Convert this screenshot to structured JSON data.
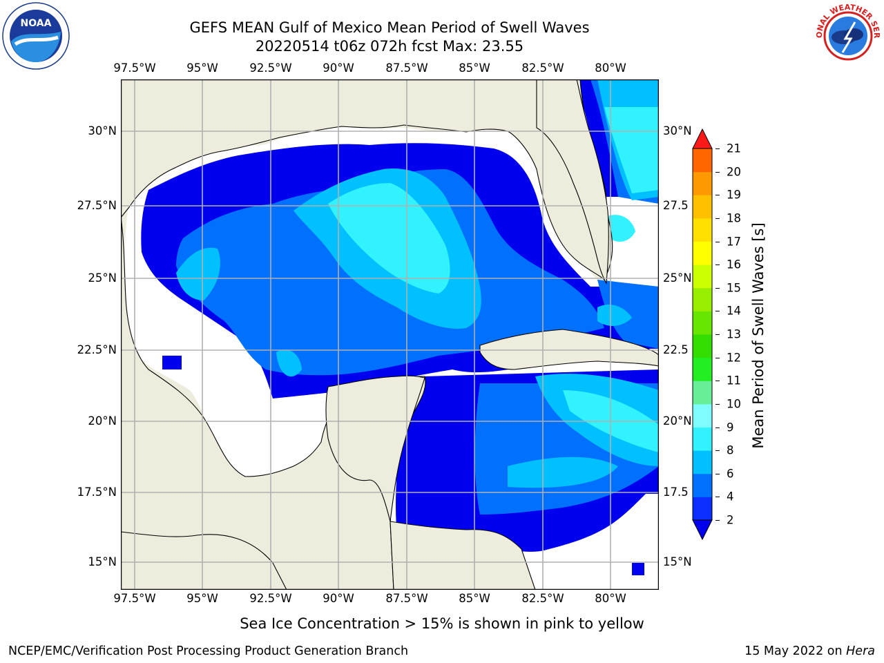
{
  "title": {
    "line1": "GEFS MEAN Gulf of Mexico Mean Period of Swell Waves",
    "line2": "20220514 t06z 072h fcst   Max: 23.55"
  },
  "logos": {
    "left": "noara-logo",
    "right": "nws-logo",
    "noaa_text": "NOAA",
    "nws_text": "NATIONAL WEATHER SERVICE"
  },
  "axes": {
    "lon_ticks": [
      "97.5°W",
      "95°W",
      "92.5°W",
      "90°W",
      "87.5°W",
      "85°W",
      "82.5°W",
      "80°W"
    ],
    "lat_ticks_left": [
      "30°N",
      "27.5°N",
      "25°N",
      "22.5°N",
      "20°N",
      "17.5°N",
      "15°N"
    ],
    "lat_ticks_right": [
      "30°N",
      "27.5",
      "25°N",
      "22.5",
      "20°N",
      "17.5",
      "15°N"
    ],
    "lon_range": [
      -98,
      -78.2
    ],
    "lat_range": [
      14,
      31.8
    ]
  },
  "colorbar": {
    "label": "Mean Period of Swell Waves [s]",
    "ticks": [
      "2",
      "4",
      "6",
      "8",
      "9",
      "10",
      "11",
      "12",
      "13",
      "14",
      "15",
      "16",
      "17",
      "18",
      "19",
      "20",
      "21"
    ],
    "colors": [
      "#0a2fff",
      "#0070ff",
      "#00c0ff",
      "#33f2ff",
      "#7ffcff",
      "#66ee99",
      "#22ee22",
      "#33dd00",
      "#66e600",
      "#99ee00",
      "#ccff00",
      "#ffff00",
      "#ffe000",
      "#ffc000",
      "#ff9900",
      "#ff6600",
      "#ff3300",
      "#ff0000"
    ],
    "under_color": "#0000ee",
    "over_color": "#ff1a1a"
  },
  "colors": {
    "land": "#eeecdc",
    "ocean_missing": "#ffffff",
    "grid": "#b0b0b0"
  },
  "annotation": "Sea Ice Concentration > 15% is shown in pink to yellow",
  "footer": {
    "left": "NCEP/EMC/Verification Post Processing Product Generation Branch",
    "right_date": "15 May 2022 on ",
    "right_host": "Hera"
  }
}
